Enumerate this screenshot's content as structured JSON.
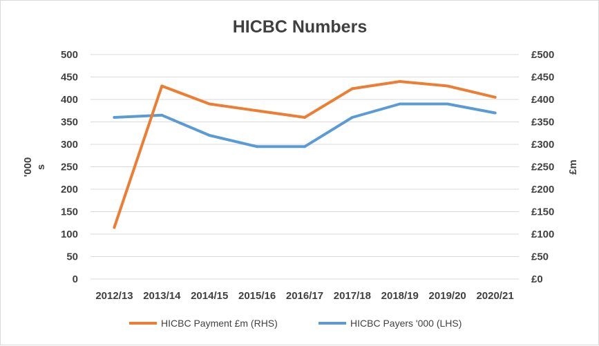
{
  "chart_data": {
    "type": "line",
    "title": "HICBC Numbers",
    "categories": [
      "2012/13",
      "2013/14",
      "2014/15",
      "2015/16",
      "2016/17",
      "2017/18",
      "2018/19",
      "2019/20",
      "2020/21"
    ],
    "left_axis": {
      "label_lines": [
        "'000",
        "s"
      ],
      "ylim": [
        0,
        500
      ],
      "ticks": [
        "0",
        "50",
        "100",
        "150",
        "200",
        "250",
        "300",
        "350",
        "400",
        "450",
        "500"
      ]
    },
    "right_axis": {
      "label": "£m",
      "ylim": [
        0,
        500
      ],
      "ticks": [
        "£0",
        "£50",
        "£100",
        "£150",
        "£200",
        "£250",
        "£300",
        "£350",
        "£400",
        "£450",
        "£500"
      ]
    },
    "grid": true,
    "legend_position": "bottom",
    "series": [
      {
        "name": "HICBC Payment £m (RHS)",
        "axis": "right",
        "color": "#ed7d31",
        "values": [
          115,
          430,
          390,
          375,
          360,
          424,
          440,
          430,
          405
        ]
      },
      {
        "name": "HICBC Payers '000 (LHS)",
        "axis": "left",
        "color": "#5b9bd5",
        "values": [
          360,
          365,
          320,
          295,
          295,
          360,
          390,
          390,
          370
        ]
      }
    ]
  }
}
